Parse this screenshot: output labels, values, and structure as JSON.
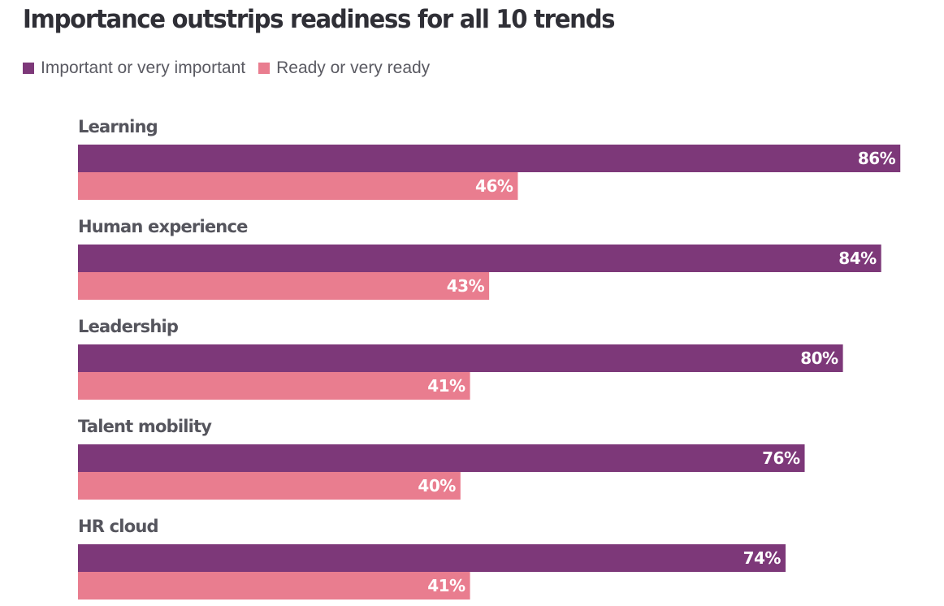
{
  "chart_data": {
    "type": "bar",
    "orientation": "horizontal",
    "title": "Importance outstrips readiness for all 10 trends",
    "categories": [
      "Learning",
      "Human experience",
      "Leadership",
      "Talent mobility",
      "HR cloud"
    ],
    "series": [
      {
        "name": "Important or very important",
        "color": "#7d3879",
        "values": [
          86,
          84,
          80,
          76,
          74
        ],
        "labels": [
          "86%",
          "84%",
          "80%",
          "76%",
          "74%"
        ]
      },
      {
        "name": "Ready or very ready",
        "color": "#e97d8f",
        "values": [
          46,
          43,
          41,
          40,
          41
        ],
        "labels": [
          "46%",
          "43%",
          "41%",
          "40%",
          "41%"
        ]
      }
    ],
    "xlim": [
      0,
      86
    ],
    "legend_position": "top-left",
    "grid": false
  }
}
